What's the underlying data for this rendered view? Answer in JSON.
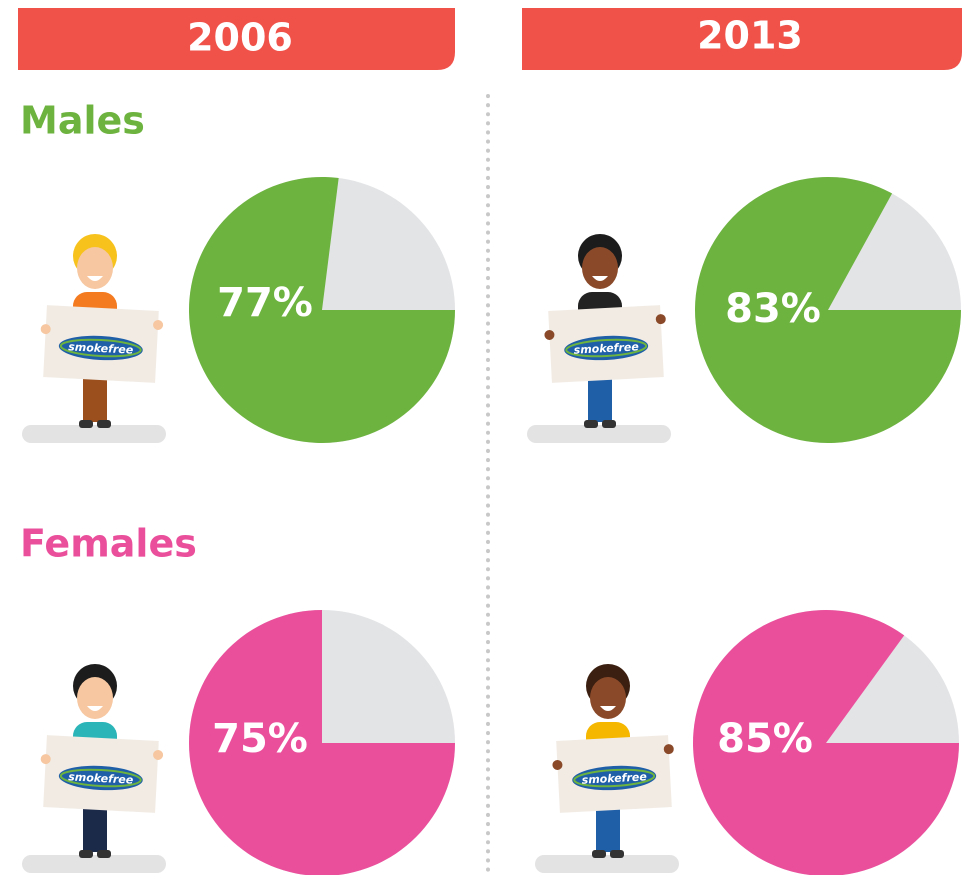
{
  "headers": [
    "2006",
    "2013"
  ],
  "groups": [
    "Males",
    "Females"
  ],
  "sign_text": "smokefree",
  "chart_data": [
    {
      "type": "pie",
      "values": [
        77
      ],
      "value_labels": [
        "77%"
      ],
      "color": "#6db33f"
    },
    {
      "type": "pie",
      "values": [
        83
      ],
      "value_labels": [
        "83%"
      ],
      "color": "#6db33f"
    },
    {
      "type": "pie",
      "values": [
        75
      ],
      "value_labels": [
        "75%"
      ],
      "color": "#ea4f9c"
    },
    {
      "type": "pie",
      "values": [
        85
      ],
      "value_labels": [
        "85%"
      ],
      "color": "#ea4f9c"
    }
  ]
}
